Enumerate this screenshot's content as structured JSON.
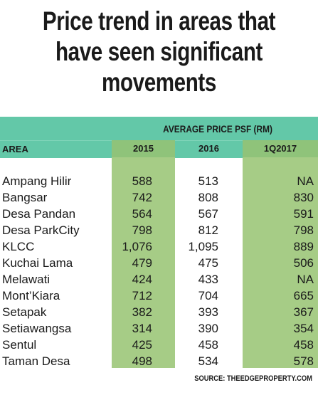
{
  "title": [
    "Price trend in areas that",
    "have seen significant",
    "movements"
  ],
  "chart_data": {
    "type": "table",
    "super_header": "AVERAGE PRICE PSF (RM)",
    "columns": [
      "AREA",
      "2015",
      "2016",
      "1Q2017"
    ],
    "rows": [
      {
        "area": "Ampang Hilir",
        "values": [
          "588",
          "513",
          "NA"
        ]
      },
      {
        "area": "Bangsar",
        "values": [
          "742",
          "808",
          "830"
        ]
      },
      {
        "area": "Desa Pandan",
        "values": [
          "564",
          "567",
          "591"
        ]
      },
      {
        "area": "Desa ParkCity",
        "values": [
          "798",
          "812",
          "798"
        ]
      },
      {
        "area": "KLCC",
        "values": [
          "1,076",
          "1,095",
          "889"
        ]
      },
      {
        "area": "Kuchai Lama",
        "values": [
          "479",
          "475",
          "506"
        ]
      },
      {
        "area": "Melawati",
        "values": [
          "424",
          "433",
          "NA"
        ]
      },
      {
        "area": "Mont’Kiara",
        "values": [
          "712",
          "704",
          "665"
        ]
      },
      {
        "area": "Setapak",
        "values": [
          "382",
          "393",
          "367"
        ]
      },
      {
        "area": "Setiawangsa",
        "values": [
          "314",
          "390",
          "354"
        ]
      },
      {
        "area": "Sentul",
        "values": [
          "425",
          "458",
          "458"
        ]
      },
      {
        "area": "Taman Desa",
        "values": [
          "498",
          "534",
          "578"
        ]
      }
    ]
  },
  "source": "SOURCE: THEEDGEPROPERTY.COM",
  "colors": {
    "header": "#63c8a8",
    "highlight_column": "#a6cc86",
    "highlight_header": "#8fc37a"
  }
}
